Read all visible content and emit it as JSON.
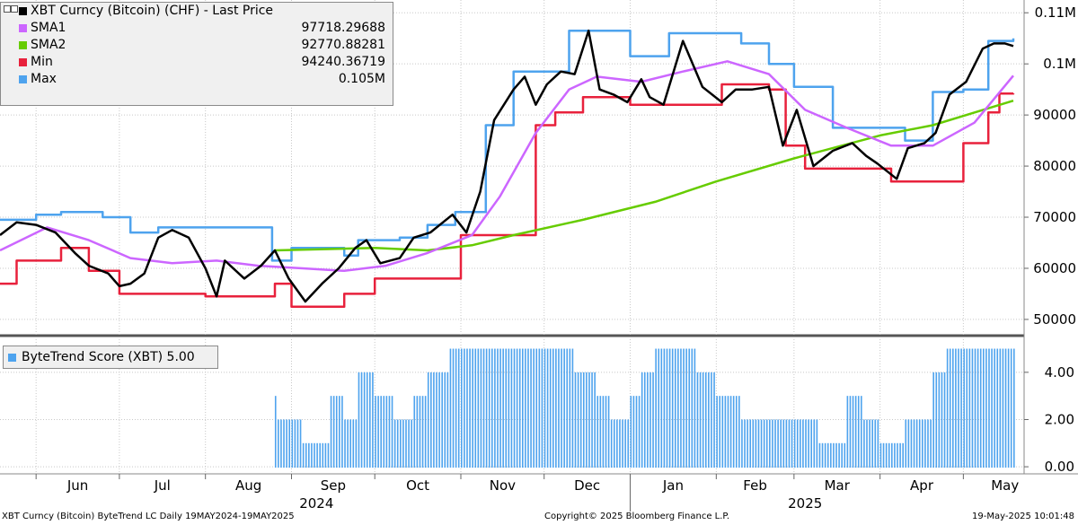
{
  "legend_top": {
    "title": "XBT Curncy (Bitcoin) (CHF) - Last Price",
    "items": [
      {
        "label": "SMA1",
        "value": "97718.29688",
        "color": "#cc66ff"
      },
      {
        "label": "SMA2",
        "value": "92770.88281",
        "color": "#66cc00"
      },
      {
        "label": "Min",
        "value": "94240.36719",
        "color": "#e8213c"
      },
      {
        "label": "Max",
        "value": "0.105M",
        "color": "#4ea3ee"
      }
    ],
    "title_color": "#000000"
  },
  "legend_bottom": {
    "label": "ByteTrend Score (XBT) 5.00",
    "color": "#4ea3ee"
  },
  "footer": {
    "left": "XBT Curncy (Bitcoin) ByteTrend LC  Daily 19MAY2024-19MAY2025",
    "center": "Copyright© 2025 Bloomberg Finance L.P.",
    "right": "19-May-2025 10:01:48"
  },
  "chart_data": [
    {
      "type": "line",
      "title": "XBT Curncy (Bitcoin) (CHF) - Last Price",
      "x_axis": {
        "month_labels": [
          "Jun",
          "Jul",
          "Aug",
          "Sep",
          "Oct",
          "Nov",
          "Dec",
          "Jan",
          "Feb",
          "Mar",
          "Apr",
          "May"
        ],
        "year_labels": [
          "2024",
          "2025"
        ],
        "range": [
          "2024-05-19",
          "2025-05-19"
        ]
      },
      "y_axis": {
        "ticks": [
          50000,
          60000,
          70000,
          80000,
          90000,
          100000,
          110000
        ],
        "tick_labels": [
          "50000",
          "60000",
          "70000",
          "80000",
          "90000",
          "0.1M",
          "0.11M"
        ],
        "ylim": [
          47000,
          112500
        ],
        "position": "right"
      },
      "grid": true,
      "series": [
        {
          "name": "XBT Curncy (Bitcoin) (CHF) - Last Price",
          "color": "#000000",
          "points": [
            [
              "2024-05-19",
              66500
            ],
            [
              "2024-05-25",
              69000
            ],
            [
              "2024-06-01",
              68500
            ],
            [
              "2024-06-08",
              67000
            ],
            [
              "2024-06-15",
              63000
            ],
            [
              "2024-06-20",
              60500
            ],
            [
              "2024-06-27",
              59000
            ],
            [
              "2024-07-01",
              56500
            ],
            [
              "2024-07-05",
              57000
            ],
            [
              "2024-07-10",
              59000
            ],
            [
              "2024-07-15",
              66000
            ],
            [
              "2024-07-20",
              67500
            ],
            [
              "2024-07-26",
              66000
            ],
            [
              "2024-08-01",
              60000
            ],
            [
              "2024-08-05",
              54500
            ],
            [
              "2024-08-08",
              61500
            ],
            [
              "2024-08-15",
              58000
            ],
            [
              "2024-08-21",
              60500
            ],
            [
              "2024-08-26",
              63500
            ],
            [
              "2024-08-31",
              58000
            ],
            [
              "2024-09-06",
              53500
            ],
            [
              "2024-09-12",
              57000
            ],
            [
              "2024-09-18",
              60000
            ],
            [
              "2024-09-24",
              64000
            ],
            [
              "2024-09-28",
              65500
            ],
            [
              "2024-10-03",
              61000
            ],
            [
              "2024-10-10",
              62000
            ],
            [
              "2024-10-15",
              66000
            ],
            [
              "2024-10-21",
              67000
            ],
            [
              "2024-10-29",
              70500
            ],
            [
              "2024-11-03",
              67000
            ],
            [
              "2024-11-08",
              75000
            ],
            [
              "2024-11-13",
              89000
            ],
            [
              "2024-11-20",
              95000
            ],
            [
              "2024-11-24",
              97500
            ],
            [
              "2024-11-28",
              92000
            ],
            [
              "2024-12-02",
              96000
            ],
            [
              "2024-12-07",
              98500
            ],
            [
              "2024-12-12",
              98000
            ],
            [
              "2024-12-17",
              106500
            ],
            [
              "2024-12-21",
              95000
            ],
            [
              "2024-12-26",
              94000
            ],
            [
              "2024-12-31",
              92500
            ],
            [
              "2025-01-05",
              97000
            ],
            [
              "2025-01-08",
              93500
            ],
            [
              "2025-01-13",
              92000
            ],
            [
              "2025-01-20",
              104500
            ],
            [
              "2025-01-27",
              95500
            ],
            [
              "2025-02-03",
              92500
            ],
            [
              "2025-02-08",
              95000
            ],
            [
              "2025-02-14",
              95000
            ],
            [
              "2025-02-20",
              95500
            ],
            [
              "2025-02-25",
              84000
            ],
            [
              "2025-03-02",
              91000
            ],
            [
              "2025-03-08",
              80000
            ],
            [
              "2025-03-15",
              83000
            ],
            [
              "2025-03-22",
              84500
            ],
            [
              "2025-03-27",
              82000
            ],
            [
              "2025-03-31",
              80500
            ],
            [
              "2025-04-07",
              77500
            ],
            [
              "2025-04-11",
              83500
            ],
            [
              "2025-04-17",
              84500
            ],
            [
              "2025-04-21",
              86500
            ],
            [
              "2025-04-26",
              94000
            ],
            [
              "2025-05-02",
              96500
            ],
            [
              "2025-05-08",
              103000
            ],
            [
              "2025-05-12",
              104000
            ],
            [
              "2025-05-16",
              104000
            ],
            [
              "2025-05-19",
              103500
            ]
          ]
        },
        {
          "name": "SMA1",
          "color": "#cc66ff",
          "points": [
            [
              "2024-05-19",
              63500
            ],
            [
              "2024-06-05",
              68000
            ],
            [
              "2024-06-20",
              65500
            ],
            [
              "2024-07-05",
              62000
            ],
            [
              "2024-07-20",
              61000
            ],
            [
              "2024-08-05",
              61500
            ],
            [
              "2024-08-20",
              60500
            ],
            [
              "2024-09-05",
              60000
            ],
            [
              "2024-09-20",
              59500
            ],
            [
              "2024-10-05",
              60500
            ],
            [
              "2024-10-20",
              63000
            ],
            [
              "2024-11-05",
              66500
            ],
            [
              "2024-11-15",
              74000
            ],
            [
              "2024-11-28",
              86500
            ],
            [
              "2024-12-10",
              95000
            ],
            [
              "2024-12-20",
              97500
            ],
            [
              "2025-01-05",
              96500
            ],
            [
              "2025-01-20",
              98500
            ],
            [
              "2025-02-05",
              100500
            ],
            [
              "2025-02-20",
              98000
            ],
            [
              "2025-03-05",
              91000
            ],
            [
              "2025-03-20",
              87500
            ],
            [
              "2025-04-05",
              84000
            ],
            [
              "2025-04-20",
              84000
            ],
            [
              "2025-05-05",
              88500
            ],
            [
              "2025-05-19",
              97700
            ]
          ]
        },
        {
          "name": "SMA2",
          "color": "#66cc00",
          "points": [
            [
              "2024-08-26",
              63500
            ],
            [
              "2024-10-01",
              64000
            ],
            [
              "2024-10-20",
              63500
            ],
            [
              "2024-11-05",
              64500
            ],
            [
              "2024-11-20",
              66500
            ],
            [
              "2024-12-15",
              69500
            ],
            [
              "2025-01-10",
              73000
            ],
            [
              "2025-02-01",
              77000
            ],
            [
              "2025-03-01",
              81500
            ],
            [
              "2025-04-01",
              86000
            ],
            [
              "2025-04-20",
              88000
            ],
            [
              "2025-05-19",
              92800
            ]
          ]
        },
        {
          "name": "Min",
          "color": "#e8213c",
          "points": [
            [
              "2024-05-19",
              57000
            ],
            [
              "2024-05-25",
              61500
            ],
            [
              "2024-06-10",
              64000
            ],
            [
              "2024-06-20",
              59500
            ],
            [
              "2024-07-01",
              55000
            ],
            [
              "2024-07-20",
              55000
            ],
            [
              "2024-08-01",
              54500
            ],
            [
              "2024-08-26",
              57000
            ],
            [
              "2024-09-01",
              52500
            ],
            [
              "2024-09-20",
              55000
            ],
            [
              "2024-10-01",
              58000
            ],
            [
              "2024-10-15",
              58000
            ],
            [
              "2024-11-01",
              66500
            ],
            [
              "2024-11-20",
              66500
            ],
            [
              "2024-11-28",
              88000
            ],
            [
              "2024-12-05",
              90500
            ],
            [
              "2024-12-15",
              93500
            ],
            [
              "2025-01-01",
              92000
            ],
            [
              "2025-01-25",
              92000
            ],
            [
              "2025-02-03",
              96000
            ],
            [
              "2025-02-20",
              95000
            ],
            [
              "2025-02-26",
              84000
            ],
            [
              "2025-03-05",
              79500
            ],
            [
              "2025-03-25",
              79500
            ],
            [
              "2025-04-05",
              77000
            ],
            [
              "2025-04-25",
              77000
            ],
            [
              "2025-05-01",
              84500
            ],
            [
              "2025-05-10",
              90500
            ],
            [
              "2025-05-14",
              94200
            ],
            [
              "2025-05-19",
              94240
            ]
          ]
        },
        {
          "name": "Max",
          "color": "#4ea3ee",
          "points": [
            [
              "2024-05-19",
              69500
            ],
            [
              "2024-06-01",
              70500
            ],
            [
              "2024-06-10",
              71000
            ],
            [
              "2024-06-25",
              70000
            ],
            [
              "2024-07-05",
              67000
            ],
            [
              "2024-07-15",
              68000
            ],
            [
              "2024-08-01",
              68000
            ],
            [
              "2024-08-25",
              61500
            ],
            [
              "2024-09-01",
              64000
            ],
            [
              "2024-09-20",
              62500
            ],
            [
              "2024-09-25",
              65500
            ],
            [
              "2024-10-10",
              66000
            ],
            [
              "2024-10-20",
              68500
            ],
            [
              "2024-10-30",
              71000
            ],
            [
              "2024-11-10",
              88000
            ],
            [
              "2024-11-20",
              98500
            ],
            [
              "2024-12-01",
              98500
            ],
            [
              "2024-12-10",
              106500
            ],
            [
              "2024-12-20",
              106500
            ],
            [
              "2025-01-01",
              101500
            ],
            [
              "2025-01-15",
              106000
            ],
            [
              "2025-01-25",
              106000
            ],
            [
              "2025-02-10",
              104000
            ],
            [
              "2025-02-20",
              100000
            ],
            [
              "2025-03-01",
              95500
            ],
            [
              "2025-03-15",
              87500
            ],
            [
              "2025-03-31",
              87500
            ],
            [
              "2025-04-10",
              85000
            ],
            [
              "2025-04-20",
              94500
            ],
            [
              "2025-05-01",
              95000
            ],
            [
              "2025-05-10",
              104500
            ],
            [
              "2025-05-19",
              105000
            ]
          ]
        }
      ]
    },
    {
      "type": "bar",
      "title": "ByteTrend Score (XBT) 5.00",
      "y_axis": {
        "ticks": [
          0,
          2,
          4
        ],
        "tick_labels": [
          "0.00",
          "2.00",
          "4.00"
        ],
        "ylim": [
          -0.3,
          5.4
        ],
        "position": "right"
      },
      "grid": true,
      "series": [
        {
          "name": "ByteTrend Score (XBT) 5.00",
          "color": "#4ea3ee",
          "segments": [
            [
              "2024-08-26",
              3
            ],
            [
              "2024-08-27",
              2
            ],
            [
              "2024-09-05",
              1
            ],
            [
              "2024-09-15",
              3
            ],
            [
              "2024-09-20",
              2
            ],
            [
              "2024-09-25",
              4
            ],
            [
              "2024-10-01",
              3
            ],
            [
              "2024-10-08",
              2
            ],
            [
              "2024-10-15",
              3
            ],
            [
              "2024-10-20",
              4
            ],
            [
              "2024-10-28",
              5
            ],
            [
              "2024-12-05",
              5
            ],
            [
              "2024-12-12",
              4
            ],
            [
              "2024-12-20",
              3
            ],
            [
              "2024-12-25",
              2
            ],
            [
              "2025-01-01",
              3
            ],
            [
              "2025-01-05",
              4
            ],
            [
              "2025-01-10",
              5
            ],
            [
              "2025-01-25",
              4
            ],
            [
              "2025-02-01",
              3
            ],
            [
              "2025-02-10",
              2
            ],
            [
              "2025-03-01",
              2
            ],
            [
              "2025-03-10",
              1
            ],
            [
              "2025-03-20",
              3
            ],
            [
              "2025-03-26",
              2
            ],
            [
              "2025-04-01",
              1
            ],
            [
              "2025-04-10",
              2
            ],
            [
              "2025-04-20",
              4
            ],
            [
              "2025-04-25",
              5
            ],
            [
              "2025-05-19",
              5
            ]
          ]
        }
      ]
    }
  ]
}
